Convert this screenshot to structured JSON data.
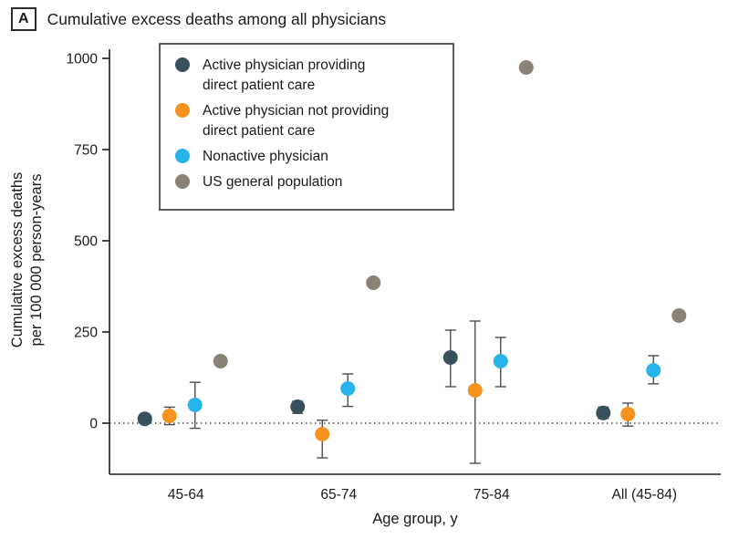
{
  "panel": {
    "label": "A",
    "title": "Cumulative excess deaths among all physicians"
  },
  "colors": {
    "direct_care": "#36515C",
    "not_direct_care": "#F6921E",
    "nonactive": "#27B4EA",
    "us_general": "#8A8275",
    "error_bar": "#4d4d4d",
    "axis": "#1a1a1a",
    "legend_border": "#333333"
  },
  "chart_data": {
    "type": "scatter",
    "title": "Cumulative excess deaths among all physicians",
    "xlabel": "Age group, y",
    "ylabel_lines": [
      "Cumulative excess deaths",
      "per 100 000 person-years"
    ],
    "categories": [
      "45-64",
      "65-74",
      "75-84",
      "All (45-84)"
    ],
    "yticks": [
      0,
      250,
      500,
      750,
      1000
    ],
    "ylim": [
      -140,
      1035
    ],
    "zero_line": 0,
    "grid": false,
    "legend_position": "top-left-inside",
    "series": [
      {
        "name": "Active physician providing direct patient care",
        "color_key": "direct_care",
        "values": [
          12,
          45,
          180,
          28
        ],
        "lo": [
          3,
          27,
          100,
          13
        ],
        "hi": [
          24,
          60,
          255,
          44
        ]
      },
      {
        "name": "Active physician not providing direct patient care",
        "color_key": "not_direct_care",
        "values": [
          20,
          -30,
          90,
          25
        ],
        "lo": [
          -4,
          -95,
          -110,
          -8
        ],
        "hi": [
          44,
          8,
          280,
          55
        ]
      },
      {
        "name": "Nonactive physician",
        "color_key": "nonactive",
        "values": [
          50,
          95,
          170,
          145
        ],
        "lo": [
          -14,
          46,
          100,
          108
        ],
        "hi": [
          112,
          135,
          235,
          185
        ]
      },
      {
        "name": "US general population",
        "color_key": "us_general",
        "values": [
          170,
          385,
          975,
          295
        ],
        "lo": [
          null,
          null,
          null,
          null
        ],
        "hi": [
          null,
          null,
          null,
          null
        ]
      }
    ],
    "legend": [
      {
        "label_lines": [
          "Active physician providing",
          "direct patient care"
        ],
        "color_key": "direct_care"
      },
      {
        "label_lines": [
          "Active physician not providing",
          "direct patient care"
        ],
        "color_key": "not_direct_care"
      },
      {
        "label_lines": [
          "Nonactive physician"
        ],
        "color_key": "nonactive"
      },
      {
        "label_lines": [
          "US general population"
        ],
        "color_key": "us_general"
      }
    ]
  }
}
